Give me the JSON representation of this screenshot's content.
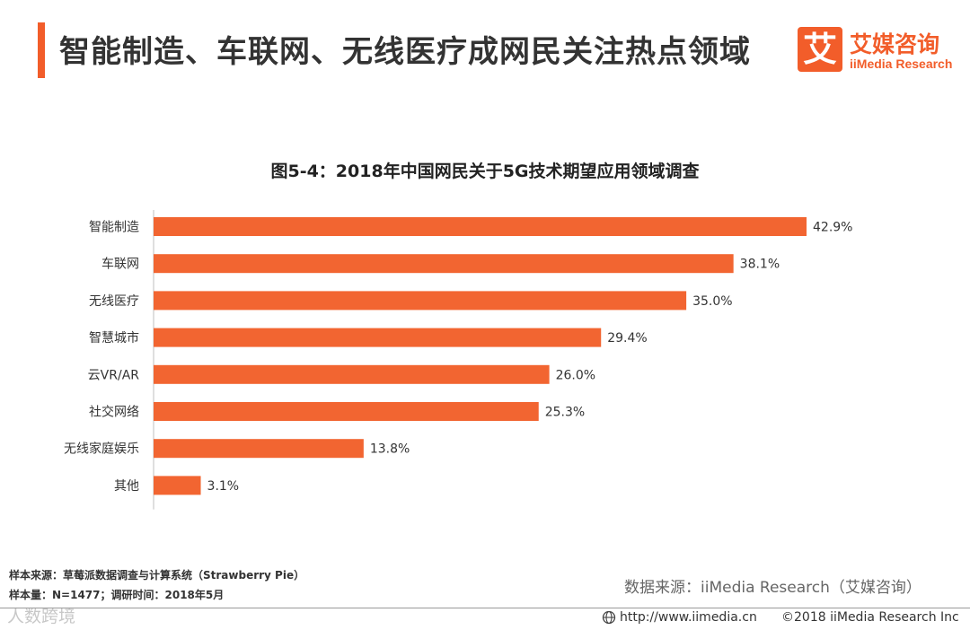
{
  "header": {
    "title": "智能制造、车联网、无线医疗成网民关注热点领域",
    "logo_mark": "艾",
    "logo_cn": "艾媒咨询",
    "logo_en": "iiMedia Research"
  },
  "chart_data": {
    "type": "bar",
    "orientation": "horizontal",
    "title": "图5-4：2018年中国网民关于5G技术期望应用领域调查",
    "categories": [
      "智能制造",
      "车联网",
      "无线医疗",
      "智慧城市",
      "云VR/AR",
      "社交网络",
      "无线家庭娱乐",
      "其他"
    ],
    "values": [
      42.9,
      38.1,
      35.0,
      29.4,
      26.0,
      25.3,
      13.8,
      3.1
    ],
    "value_labels": [
      "42.9%",
      "38.1%",
      "35.0%",
      "29.4%",
      "26.0%",
      "25.3%",
      "13.8%",
      "3.1%"
    ],
    "unit": "%",
    "xlim": [
      0,
      45
    ],
    "bar_color": "#f26531",
    "grid": false,
    "legend": "none"
  },
  "footer": {
    "note_source": "样本来源：草莓派数据调查与计算系统（Strawberry  Pie）",
    "note_sample": "样本量：N=1477；调研时间：2018年5月",
    "data_source": "数据来源：iiMedia Research（艾媒咨询）",
    "website": "http://www.iimedia.cn",
    "copyright": "©2018  iiMedia Research  Inc",
    "watermark": "人数跨境"
  },
  "colors": {
    "accent": "#f25d2a",
    "bar": "#f26531",
    "text": "#333333"
  }
}
